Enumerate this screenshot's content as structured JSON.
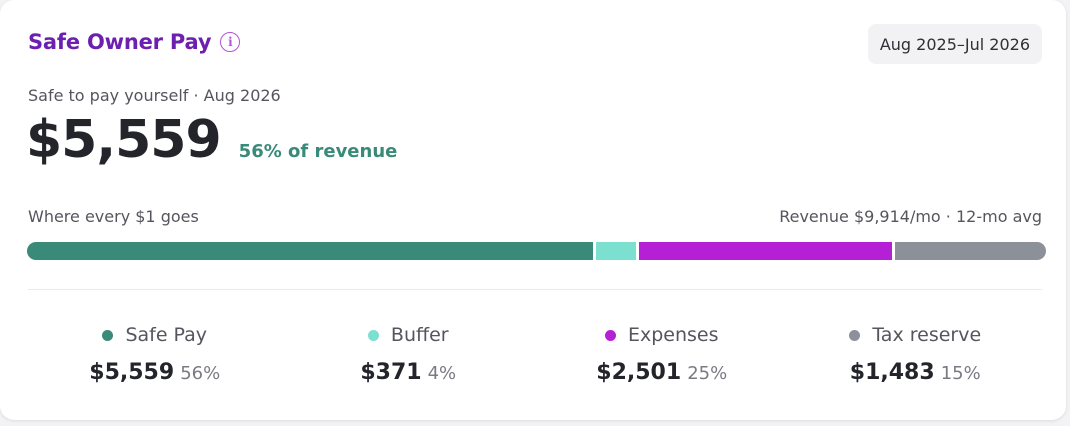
{
  "card": {
    "title": "Safe Owner Pay",
    "info_icon": "info-icon",
    "period": "Aug 2025–Jul 2026",
    "subtitle": "Safe to pay yourself · Aug 2026",
    "amount": "$5,559",
    "pct_of_revenue": "56% of revenue",
    "bar_label_left": "Where every $1 goes",
    "bar_label_right": "Revenue $9,914/mo · 12-mo avg"
  },
  "colors": {
    "title": "#6d1fb0",
    "safe_pay": "#3a8a7a",
    "buffer": "#7be0cf",
    "expenses": "#b51fd6",
    "tax_reserve": "#8c9099"
  },
  "breakdown": [
    {
      "label": "Safe Pay",
      "amount": "$5,559",
      "pct": "56%",
      "share": 56,
      "color": "#3a8a7a"
    },
    {
      "label": "Buffer",
      "amount": "$371",
      "pct": "4%",
      "share": 4,
      "color": "#7be0cf"
    },
    {
      "label": "Expenses",
      "amount": "$2,501",
      "pct": "25%",
      "share": 25,
      "color": "#b51fd6"
    },
    {
      "label": "Tax reserve",
      "amount": "$1,483",
      "pct": "15%",
      "share": 15,
      "color": "#8c9099"
    }
  ]
}
